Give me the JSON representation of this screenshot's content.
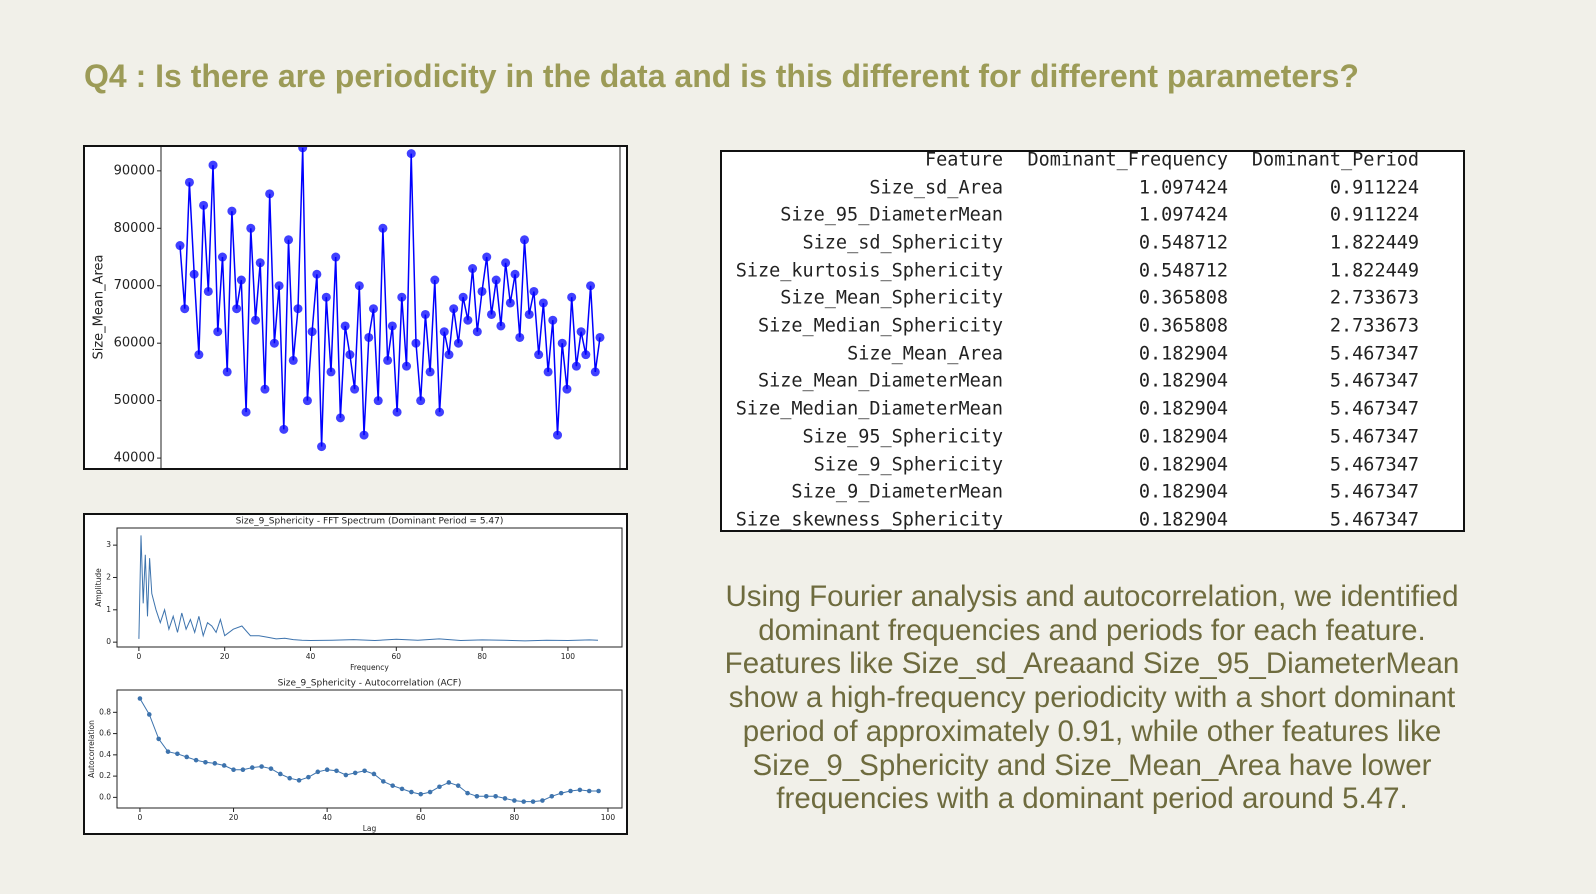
{
  "header": {
    "title": "Q4 : Is there are periodicity in the data and is this different for different parameters?"
  },
  "chart_data": [
    {
      "type": "line",
      "ylabel": "Size_Mean_Area",
      "color": "#0000ff",
      "markers": true,
      "values": [
        77000,
        66000,
        88000,
        72000,
        58000,
        84000,
        69000,
        91000,
        62000,
        75000,
        55000,
        83000,
        66000,
        71000,
        48000,
        80000,
        64000,
        74000,
        52000,
        86000,
        60000,
        70000,
        45000,
        78000,
        57000,
        66000,
        94000,
        50000,
        62000,
        72000,
        42000,
        68000,
        55000,
        75000,
        47000,
        63000,
        58000,
        52000,
        70000,
        44000,
        61000,
        66000,
        50000,
        80000,
        57000,
        63000,
        48000,
        68000,
        56000,
        93000,
        60000,
        50000,
        65000,
        55000,
        71000,
        48000,
        62000,
        58000,
        66000,
        60000,
        68000,
        64000,
        73000,
        62000,
        69000,
        75000,
        65000,
        71000,
        63000,
        74000,
        67000,
        72000,
        61000,
        78000,
        65000,
        69000,
        58000,
        67000,
        55000,
        64000,
        44000,
        60000,
        52000,
        68000,
        56000,
        62000,
        58000,
        70000,
        55000,
        61000
      ],
      "ylim": [
        38100,
        94500
      ],
      "yticks": [
        40000,
        50000,
        60000,
        70000,
        80000,
        90000
      ]
    },
    {
      "type": "line",
      "title": "Size_9_Sphericity - FFT Spectrum (Dominant Period = 5.47)",
      "xlabel": "Frequency",
      "ylabel": "Amplitude",
      "color": "#3d73ad",
      "markers": false,
      "x": [
        0,
        0.5,
        1,
        1.5,
        2,
        2.5,
        3,
        4,
        5,
        6,
        7,
        8,
        9,
        10,
        11,
        12,
        13,
        14,
        15,
        16,
        17,
        18,
        19,
        20,
        22,
        24,
        26,
        28,
        30,
        32,
        34,
        36,
        38,
        40,
        45,
        50,
        55,
        60,
        65,
        70,
        75,
        80,
        85,
        90,
        95,
        100,
        105,
        107
      ],
      "values": [
        0.1,
        3.3,
        1.2,
        2.7,
        0.8,
        2.6,
        1.5,
        1.0,
        0.6,
        1.0,
        0.4,
        0.8,
        0.3,
        0.9,
        0.4,
        0.7,
        0.3,
        0.8,
        0.2,
        0.6,
        0.5,
        0.3,
        0.7,
        0.2,
        0.4,
        0.5,
        0.2,
        0.2,
        0.15,
        0.1,
        0.12,
        0.08,
        0.06,
        0.05,
        0.06,
        0.08,
        0.05,
        0.09,
        0.06,
        0.1,
        0.05,
        0.07,
        0.06,
        0.04,
        0.06,
        0.05,
        0.07,
        0.06
      ],
      "xlim": [
        -5.1,
        112.6
      ],
      "xticks": [
        0,
        20,
        40,
        60,
        80,
        100
      ],
      "ylim": [
        -0.15,
        3.53
      ],
      "yticks": [
        0,
        1,
        2,
        3
      ]
    },
    {
      "type": "line",
      "title": "Size_9_Sphericity - Autocorrelation (ACF)",
      "xlabel": "Lag",
      "ylabel": "Autocorrelation",
      "color": "#3d73ad",
      "markers": true,
      "x": [
        0,
        2,
        4,
        6,
        8,
        10,
        12,
        14,
        16,
        18,
        20,
        22,
        24,
        26,
        28,
        30,
        32,
        34,
        36,
        38,
        40,
        42,
        44,
        46,
        48,
        50,
        52,
        54,
        56,
        58,
        60,
        62,
        64,
        66,
        68,
        70,
        72,
        74,
        76,
        78,
        80,
        82,
        84,
        86,
        88,
        90,
        92,
        94,
        96,
        98
      ],
      "values": [
        0.93,
        0.78,
        0.55,
        0.43,
        0.41,
        0.38,
        0.35,
        0.33,
        0.32,
        0.3,
        0.26,
        0.26,
        0.28,
        0.29,
        0.27,
        0.22,
        0.18,
        0.16,
        0.19,
        0.24,
        0.26,
        0.25,
        0.21,
        0.23,
        0.25,
        0.22,
        0.15,
        0.11,
        0.08,
        0.05,
        0.03,
        0.05,
        0.1,
        0.14,
        0.11,
        0.04,
        0.01,
        0.01,
        0.01,
        -0.01,
        -0.03,
        -0.04,
        -0.04,
        -0.03,
        0.01,
        0.04,
        0.06,
        0.07,
        0.06,
        0.06
      ],
      "xlim": [
        -4.9,
        103
      ],
      "xticks": [
        0,
        20,
        40,
        60,
        80,
        100
      ],
      "ylim": [
        -0.1,
        1.01
      ],
      "yticks": [
        {
          "value": 0,
          "label": "0.0"
        },
        0.2,
        0.4,
        0.6,
        0.8
      ]
    }
  ],
  "table": {
    "columns": [
      "Feature",
      "Dominant_Frequency",
      "Dominant_Period"
    ],
    "rows": [
      [
        "Size_sd_Area",
        1.097424,
        0.911224
      ],
      [
        "Size_95_DiameterMean",
        1.097424,
        0.911224
      ],
      [
        "Size_sd_Sphericity",
        0.548712,
        1.822449
      ],
      [
        "Size_kurtosis_Sphericity",
        0.548712,
        1.822449
      ],
      [
        "Size_Mean_Sphericity",
        0.365808,
        2.733673
      ],
      [
        "Size_Median_Sphericity",
        0.365808,
        2.733673
      ],
      [
        "Size_Mean_Area",
        0.182904,
        5.467347
      ],
      [
        "Size_Mean_DiameterMean",
        0.182904,
        5.467347
      ],
      [
        "Size_Median_DiameterMean",
        0.182904,
        5.467347
      ],
      [
        "Size_95_Sphericity",
        0.182904,
        5.467347
      ],
      [
        "Size_9_Sphericity",
        0.182904,
        5.467347
      ],
      [
        "Size_9_DiameterMean",
        0.182904,
        5.467347
      ],
      [
        "Size_skewness_Sphericity",
        0.182904,
        5.467347
      ]
    ]
  },
  "paragraph": {
    "lines": [
      "Using Fourier analysis and autocorrelation, we identified",
      "dominant frequencies and periods for each feature.",
      "Features like Size_sd_Areaand Size_95_DiameterMean",
      "show a high-frequency periodicity with a short dominant",
      "period of approximately 0.91, while other features like",
      "Size_9_Sphericity and Size_Mean_Area have lower",
      "frequencies with a dominant period around 5.47."
    ]
  }
}
